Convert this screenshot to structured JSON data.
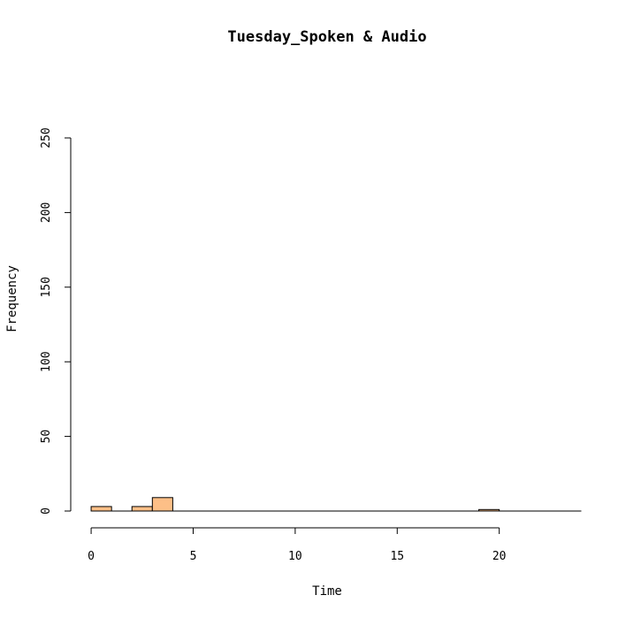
{
  "chart_data": {
    "type": "bar",
    "subtype": "histogram",
    "title": "Tuesday_Spoken & Audio",
    "xlabel": "Time",
    "ylabel": "Frequency",
    "xlim": [
      -1,
      24
    ],
    "ylim": [
      0,
      250
    ],
    "xticks": [
      0,
      5,
      10,
      15,
      20
    ],
    "yticks": [
      0,
      50,
      100,
      150,
      200,
      250
    ],
    "bin_width": 1,
    "bins": [
      {
        "x0": 0,
        "x1": 1,
        "count": 3
      },
      {
        "x0": 1,
        "x1": 2,
        "count": 0
      },
      {
        "x0": 2,
        "x1": 3,
        "count": 3
      },
      {
        "x0": 3,
        "x1": 4,
        "count": 9
      },
      {
        "x0": 4,
        "x1": 5,
        "count": 0
      },
      {
        "x0": 5,
        "x1": 6,
        "count": 0
      },
      {
        "x0": 6,
        "x1": 7,
        "count": 0
      },
      {
        "x0": 7,
        "x1": 8,
        "count": 0
      },
      {
        "x0": 8,
        "x1": 9,
        "count": 0
      },
      {
        "x0": 9,
        "x1": 10,
        "count": 0
      },
      {
        "x0": 10,
        "x1": 11,
        "count": 0
      },
      {
        "x0": 11,
        "x1": 12,
        "count": 0
      },
      {
        "x0": 12,
        "x1": 13,
        "count": 0
      },
      {
        "x0": 13,
        "x1": 14,
        "count": 0
      },
      {
        "x0": 14,
        "x1": 15,
        "count": 0
      },
      {
        "x0": 15,
        "x1": 16,
        "count": 0
      },
      {
        "x0": 16,
        "x1": 17,
        "count": 0
      },
      {
        "x0": 17,
        "x1": 18,
        "count": 0
      },
      {
        "x0": 18,
        "x1": 19,
        "count": 0
      },
      {
        "x0": 19,
        "x1": 20,
        "count": 1
      },
      {
        "x0": 20,
        "x1": 21,
        "count": 0
      },
      {
        "x0": 21,
        "x1": 22,
        "count": 0
      },
      {
        "x0": 22,
        "x1": 23,
        "count": 0
      },
      {
        "x0": 23,
        "x1": 24,
        "count": 0
      }
    ],
    "bar_color": "#FDBF87",
    "grid": false,
    "legend": "none"
  }
}
